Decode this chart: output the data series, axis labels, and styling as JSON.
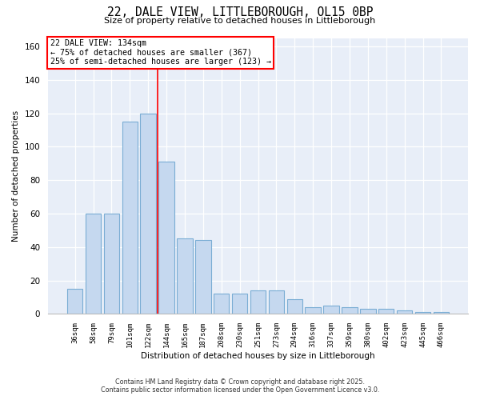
{
  "title1": "22, DALE VIEW, LITTLEBOROUGH, OL15 0BP",
  "title2": "Size of property relative to detached houses in Littleborough",
  "xlabel": "Distribution of detached houses by size in Littleborough",
  "ylabel": "Number of detached properties",
  "categories": [
    "36sqm",
    "58sqm",
    "79sqm",
    "101sqm",
    "122sqm",
    "144sqm",
    "165sqm",
    "187sqm",
    "208sqm",
    "230sqm",
    "251sqm",
    "273sqm",
    "294sqm",
    "316sqm",
    "337sqm",
    "359sqm",
    "380sqm",
    "402sqm",
    "423sqm",
    "445sqm",
    "466sqm"
  ],
  "values": [
    15,
    60,
    60,
    115,
    120,
    91,
    45,
    44,
    12,
    12,
    14,
    14,
    9,
    4,
    5,
    4,
    3,
    3,
    2,
    1,
    1
  ],
  "bar_color": "#c5d8ef",
  "bar_edge_color": "#7aadd4",
  "vline_x": 4.5,
  "vline_color": "red",
  "annotation_title": "22 DALE VIEW: 134sqm",
  "annotation_line1": "← 75% of detached houses are smaller (367)",
  "annotation_line2": "25% of semi-detached houses are larger (123) →",
  "ylim": [
    0,
    165
  ],
  "yticks": [
    0,
    20,
    40,
    60,
    80,
    100,
    120,
    140,
    160
  ],
  "plot_bg_color": "#e8eef8",
  "fig_bg_color": "#ffffff",
  "footer1": "Contains HM Land Registry data © Crown copyright and database right 2025.",
  "footer2": "Contains public sector information licensed under the Open Government Licence v3.0."
}
